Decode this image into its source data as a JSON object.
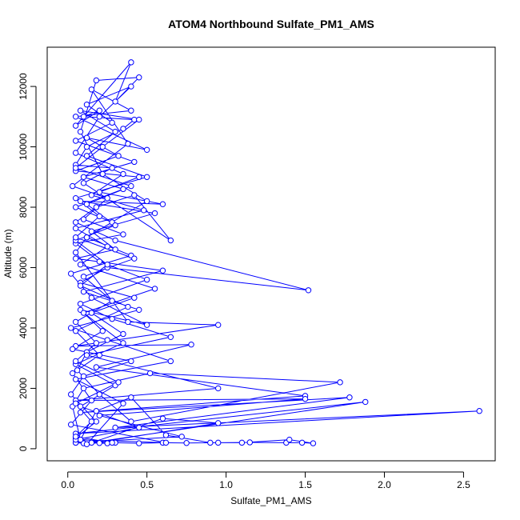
{
  "chart_data": {
    "type": "line",
    "title": "ATOM4 Northbound Sulfate_PM1_AMS",
    "xlabel": "Sulfate_PM1_AMS",
    "ylabel": "Altitude (m)",
    "xlim": [
      -0.13,
      2.7
    ],
    "ylim": [
      -400,
      13300
    ],
    "x_ticks": [
      0.0,
      0.5,
      1.0,
      1.5,
      2.0,
      2.5
    ],
    "x_tick_labels": [
      "0.0",
      "0.5",
      "1.0",
      "1.5",
      "2.0",
      "2.5"
    ],
    "y_ticks": [
      0,
      2000,
      4000,
      6000,
      8000,
      10000,
      12000
    ],
    "y_tick_labels": [
      "0",
      "2000",
      "4000",
      "6000",
      "8000",
      "10000",
      "12000"
    ],
    "marker": "open-circle",
    "color": "#0000ff",
    "grid": false,
    "series": [
      {
        "points": [
          [
            0.05,
            200
          ],
          [
            0.1,
            180
          ],
          [
            0.2,
            190
          ],
          [
            0.3,
            200
          ],
          [
            0.45,
            180
          ],
          [
            0.6,
            200
          ],
          [
            0.75,
            190
          ],
          [
            0.95,
            200
          ],
          [
            1.15,
            210
          ],
          [
            1.38,
            200
          ],
          [
            1.48,
            200
          ],
          [
            1.55,
            180
          ],
          [
            1.4,
            300
          ],
          [
            1.1,
            200
          ],
          [
            0.9,
            200
          ],
          [
            0.62,
            450
          ],
          [
            0.4,
            1700
          ],
          [
            0.18,
            1250
          ],
          [
            0.08,
            300
          ],
          [
            0.03,
            1400
          ],
          [
            0.1,
            2000
          ],
          [
            0.52,
            2500
          ],
          [
            1.72,
            2200
          ],
          [
            0.4,
            900
          ],
          [
            0.2,
            1800
          ],
          [
            0.06,
            2600
          ],
          [
            0.12,
            3200
          ],
          [
            0.35,
            3800
          ],
          [
            0.15,
            4500
          ],
          [
            0.42,
            5000
          ],
          [
            0.08,
            5500
          ],
          [
            0.25,
            6000
          ],
          [
            1.52,
            5250
          ],
          [
            0.3,
            6900
          ],
          [
            0.05,
            7500
          ],
          [
            0.18,
            8000
          ],
          [
            0.42,
            8400
          ],
          [
            0.65,
            6900
          ],
          [
            0.1,
            8800
          ],
          [
            0.28,
            9300
          ],
          [
            0.05,
            9400
          ],
          [
            0.12,
            10000
          ],
          [
            0.35,
            10600
          ],
          [
            0.42,
            10900
          ],
          [
            0.1,
            11000
          ],
          [
            0.2,
            11200
          ],
          [
            0.05,
            10700
          ],
          [
            0.4,
            12800
          ],
          [
            0.3,
            11500
          ],
          [
            0.45,
            12300
          ],
          [
            0.18,
            12200
          ],
          [
            0.08,
            10500
          ],
          [
            0.22,
            9100
          ],
          [
            0.5,
            8200
          ],
          [
            0.12,
            7000
          ],
          [
            0.05,
            6500
          ],
          [
            0.38,
            4200
          ],
          [
            0.95,
            4100
          ],
          [
            0.05,
            3400
          ],
          [
            0.78,
            3450
          ],
          [
            0.18,
            2700
          ],
          [
            1.5,
            1750
          ],
          [
            0.08,
            1200
          ],
          [
            1.78,
            1700
          ],
          [
            0.3,
            700
          ],
          [
            2.6,
            1250
          ],
          [
            0.05,
            500
          ],
          [
            1.88,
            1550
          ],
          [
            0.15,
            200
          ],
          [
            0.6,
            1000
          ],
          [
            0.95,
            850
          ],
          [
            0.12,
            150
          ],
          [
            0.35,
            1500
          ],
          [
            0.05,
            2300
          ],
          [
            0.65,
            2900
          ],
          [
            0.25,
            3600
          ],
          [
            0.02,
            4000
          ],
          [
            0.45,
            4600
          ],
          [
            0.1,
            5200
          ],
          [
            0.6,
            5900
          ],
          [
            0.05,
            6300
          ],
          [
            0.3,
            6600
          ],
          [
            0.15,
            7200
          ],
          [
            0.55,
            7800
          ],
          [
            0.08,
            8200
          ],
          [
            0.6,
            8100
          ],
          [
            0.2,
            8500
          ],
          [
            0.45,
            9000
          ],
          [
            0.05,
            9200
          ],
          [
            0.32,
            9700
          ],
          [
            0.12,
            10300
          ],
          [
            0.5,
            9900
          ],
          [
            0.05,
            11000
          ],
          [
            0.4,
            11200
          ],
          [
            0.15,
            11900
          ],
          [
            0.38,
            10100
          ],
          [
            0.03,
            8700
          ],
          [
            0.25,
            8300
          ],
          [
            0.1,
            7600
          ],
          [
            0.35,
            7100
          ],
          [
            0.05,
            6800
          ],
          [
            0.2,
            6200
          ],
          [
            0.5,
            5600
          ],
          [
            0.08,
            4800
          ],
          [
            0.28,
            4300
          ],
          [
            0.65,
            3700
          ],
          [
            0.12,
            3100
          ],
          [
            0.95,
            2000
          ],
          [
            0.05,
            1600
          ],
          [
            1.5,
            1650
          ],
          [
            0.2,
            1100
          ],
          [
            0.72,
            400
          ],
          [
            0.05,
            200
          ],
          [
            0.25,
            180
          ],
          [
            0.05,
            350
          ],
          [
            0.18,
            900
          ],
          [
            0.02,
            1800
          ],
          [
            0.1,
            2400
          ],
          [
            0.4,
            2900
          ],
          [
            0.03,
            3300
          ],
          [
            0.22,
            3900
          ],
          [
            0.08,
            4600
          ],
          [
            0.5,
            4100
          ],
          [
            0.15,
            5000
          ],
          [
            0.02,
            5800
          ],
          [
            0.4,
            6400
          ],
          [
            0.12,
            7000
          ],
          [
            0.28,
            7500
          ],
          [
            0.05,
            8000
          ],
          [
            0.35,
            8600
          ],
          [
            0.1,
            9000
          ],
          [
            0.42,
            9500
          ],
          [
            0.05,
            10200
          ],
          [
            0.28,
            10800
          ],
          [
            0.12,
            11400
          ],
          [
            0.4,
            12000
          ],
          [
            0.2,
            11000
          ],
          [
            0.05,
            9800
          ],
          [
            0.35,
            9100
          ],
          [
            0.15,
            8400
          ],
          [
            0.48,
            7900
          ],
          [
            0.05,
            7300
          ],
          [
            0.25,
            6700
          ],
          [
            0.08,
            6100
          ],
          [
            0.55,
            5300
          ],
          [
            0.1,
            4500
          ],
          [
            0.35,
            3500
          ],
          [
            0.05,
            2800
          ],
          [
            0.3,
            2100
          ],
          [
            0.08,
            1400
          ],
          [
            0.45,
            700
          ],
          [
            0.05,
            300
          ],
          [
            0.62,
            200
          ],
          [
            0.02,
            800
          ],
          [
            0.15,
            1600
          ],
          [
            0.03,
            2500
          ],
          [
            0.2,
            3100
          ],
          [
            0.05,
            3900
          ],
          [
            0.38,
            4700
          ],
          [
            0.08,
            5400
          ],
          [
            0.25,
            6100
          ],
          [
            0.05,
            6900
          ],
          [
            0.3,
            7400
          ],
          [
            0.12,
            8100
          ],
          [
            0.4,
            8700
          ],
          [
            0.05,
            9300
          ],
          [
            0.22,
            10000
          ],
          [
            0.45,
            10900
          ],
          [
            0.08,
            11200
          ],
          [
            0.3,
            10500
          ],
          [
            0.12,
            9700
          ],
          [
            0.5,
            9000
          ],
          [
            0.05,
            8300
          ],
          [
            0.2,
            7700
          ],
          [
            0.05,
            7000
          ],
          [
            0.42,
            6300
          ],
          [
            0.1,
            5700
          ],
          [
            0.28,
            4900
          ],
          [
            0.05,
            4200
          ],
          [
            0.18,
            3500
          ],
          [
            0.05,
            2900
          ],
          [
            0.32,
            2200
          ],
          [
            0.05,
            1500
          ],
          [
            0.15,
            900
          ],
          [
            0.05,
            400
          ],
          [
            0.28,
            200
          ]
        ]
      }
    ]
  }
}
